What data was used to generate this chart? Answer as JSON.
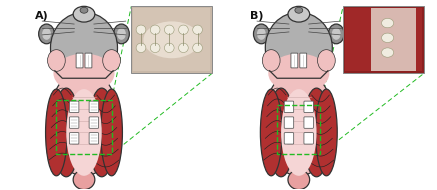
{
  "fig_width": 4.37,
  "fig_height": 1.9,
  "dpi": 100,
  "bg_color": "#ffffff",
  "label_A": "A)",
  "label_B": "B)",
  "label_fontsize": 8,
  "label_fontweight": "bold",
  "label_color": "#111111",
  "body_fill": "#f0c0c0",
  "body_edge": "#333333",
  "head_fill": "#b0b0b0",
  "ear_fill": "#909090",
  "nose_fill": "#e8a0a0",
  "snout_fill": "#c8c8c8",
  "muscle_fill": "#b03030",
  "muscle_edge": "#333333",
  "rib_line_color": "#222222",
  "center_fill": "#f5d5d5",
  "tooth_fill": "#ffffff",
  "tooth_edge": "#555555",
  "ligature_color": "#777777",
  "dashed_box_color": "#22bb22",
  "dashed_line_color": "#22bb22",
  "panel_sep": 0.5
}
